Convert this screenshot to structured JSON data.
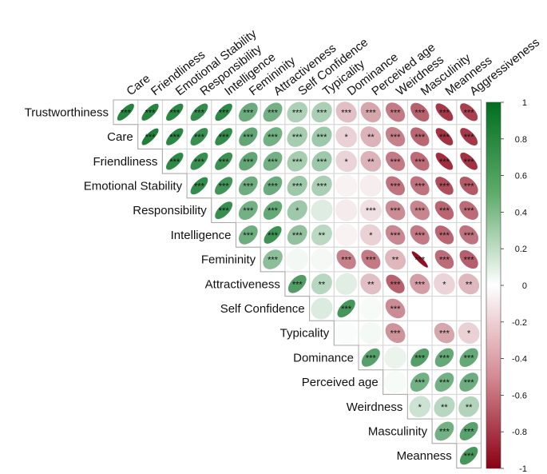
{
  "chart_data": {
    "type": "heatmap",
    "variables": [
      "Trustworthiness",
      "Care",
      "Friendliness",
      "Emotional Stability",
      "Responsibility",
      "Intelligence",
      "Femininity",
      "Attractiveness",
      "Self Confidence",
      "Typicality",
      "Dominance",
      "Perceived age",
      "Weirdness",
      "Masculinity",
      "Meanness",
      "Aggressiveness"
    ],
    "rows": [
      "Trustworthiness",
      "Care",
      "Friendliness",
      "Emotional Stability",
      "Responsibility",
      "Intelligence",
      "Femininity",
      "Attractiveness",
      "Self Confidence",
      "Typicality",
      "Dominance",
      "Perceived age",
      "Weirdness",
      "Masculinity",
      "Meanness"
    ],
    "columns": [
      "Care",
      "Friendliness",
      "Emotional Stability",
      "Responsibility",
      "Intelligence",
      "Femininity",
      "Attractiveness",
      "Self Confidence",
      "Typicality",
      "Dominance",
      "Perceived age",
      "Weirdness",
      "Masculinity",
      "Meanness",
      "Aggressiveness"
    ],
    "values": [
      [
        0.86,
        0.85,
        0.83,
        0.8,
        0.82,
        0.58,
        0.55,
        0.32,
        0.33,
        -0.25,
        -0.35,
        -0.52,
        -0.62,
        -0.78,
        -0.75
      ],
      [
        0.88,
        0.83,
        0.78,
        0.8,
        0.62,
        0.55,
        0.35,
        0.38,
        -0.18,
        -0.3,
        -0.5,
        -0.6,
        -0.8,
        -0.78
      ],
      [
        0.82,
        0.78,
        0.77,
        0.62,
        0.55,
        0.35,
        0.38,
        -0.17,
        -0.3,
        -0.52,
        -0.58,
        -0.82,
        -0.8
      ],
      [
        0.8,
        0.74,
        0.57,
        0.58,
        0.38,
        0.33,
        -0.05,
        -0.07,
        -0.55,
        -0.55,
        -0.7,
        -0.65
      ],
      [
        0.78,
        0.55,
        0.6,
        0.38,
        0.13,
        -0.08,
        -0.12,
        -0.45,
        -0.48,
        -0.6,
        -0.58
      ],
      [
        0.57,
        0.76,
        0.43,
        0.27,
        -0.05,
        -0.18,
        -0.47,
        -0.52,
        -0.6,
        -0.55
      ],
      [
        0.45,
        0.05,
        0.04,
        -0.5,
        -0.52,
        -0.28,
        -0.95,
        -0.58,
        -0.63
      ],
      [
        0.68,
        0.28,
        0.12,
        -0.25,
        -0.62,
        -0.38,
        -0.17,
        -0.28
      ],
      [
        0.14,
        0.73,
        0.03,
        -0.45,
        0.0,
        0.0,
        0.0
      ],
      [
        0.02,
        0.04,
        -0.42,
        0.0,
        -0.35,
        -0.18
      ],
      [
        0.66,
        0.08,
        0.67,
        0.6,
        0.6
      ],
      [
        0.03,
        0.55,
        0.55,
        0.57
      ],
      [
        0.2,
        0.28,
        0.3
      ],
      [
        0.55,
        0.65
      ],
      [
        0.72
      ]
    ],
    "significance": [
      [
        "***",
        "***",
        "***",
        "***",
        "***",
        "***",
        "***",
        "***",
        "***",
        "***",
        "***",
        "***",
        "***",
        "***",
        "***"
      ],
      [
        "***",
        "***",
        "***",
        "***",
        "***",
        "***",
        "***",
        "***",
        "*",
        "**",
        "***",
        "***",
        "***",
        "***"
      ],
      [
        "***",
        "***",
        "***",
        "***",
        "***",
        "***",
        "***",
        "*",
        "**",
        "***",
        "***",
        "***",
        "***"
      ],
      [
        "***",
        "***",
        "***",
        "***",
        "***",
        "***",
        "",
        "",
        "***",
        "***",
        "***",
        "***"
      ],
      [
        "***",
        "***",
        "***",
        "*",
        "",
        "",
        "***",
        "***",
        "***",
        "***",
        "***"
      ],
      [
        "***",
        "***",
        "***",
        "**",
        "",
        "*",
        "***",
        "***",
        "***",
        "***"
      ],
      [
        "***",
        "",
        "",
        "***",
        "***",
        "**",
        "***",
        "***",
        "***"
      ],
      [
        "***",
        "**",
        "",
        "**",
        "***",
        "***",
        "*",
        "**"
      ],
      [
        "",
        "***",
        "",
        "***",
        "",
        "",
        ""
      ],
      [
        "",
        "",
        "***",
        "",
        "***",
        "*"
      ],
      [
        "***",
        "",
        "***",
        "***",
        "***"
      ],
      [
        "",
        "***",
        "***",
        "***"
      ],
      [
        "*",
        "**",
        "**"
      ],
      [
        "***",
        "***"
      ],
      [
        "***"
      ]
    ],
    "colorbar": {
      "min": -1,
      "max": 1,
      "ticks": [
        "1",
        "0.8",
        "0.6",
        "0.4",
        "0.2",
        "0",
        "-0.2",
        "-0.4",
        "-0.6",
        "-0.8",
        "-1"
      ],
      "colors": {
        "negative": "#8b0014",
        "neutral": "#ffffff",
        "positive": "#006f1e"
      }
    }
  }
}
